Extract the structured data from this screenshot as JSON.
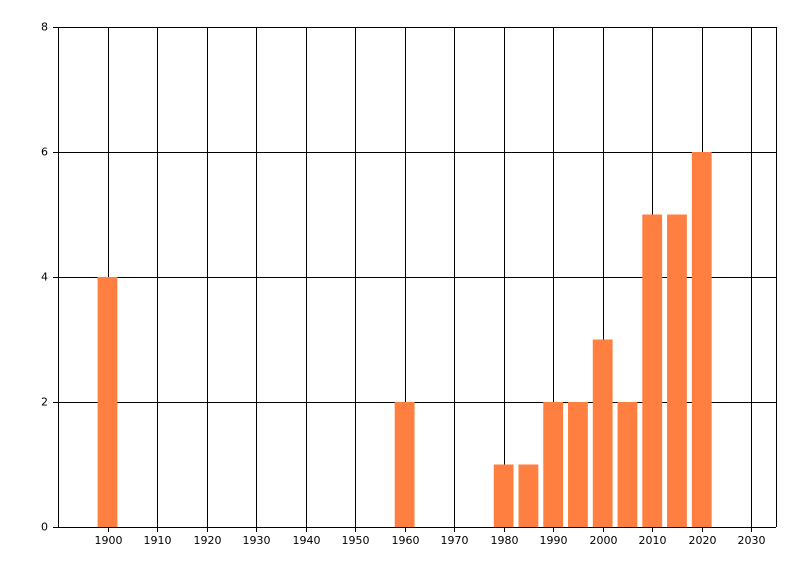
{
  "chart_data": {
    "type": "bar",
    "x": [
      1900,
      1960,
      1980,
      1985,
      1990,
      1995,
      2000,
      2005,
      2010,
      2015,
      2020
    ],
    "values": [
      4,
      2,
      1,
      1,
      2,
      2,
      3,
      2,
      5,
      5,
      6
    ],
    "color": "#ff7f40",
    "xlim": [
      1890,
      2035
    ],
    "xticks": [
      1900,
      1910,
      1920,
      1930,
      1940,
      1950,
      1960,
      1970,
      1980,
      1990,
      2000,
      2010,
      2020,
      2030
    ],
    "ylim": [
      0,
      8
    ],
    "yticks": [
      0,
      2,
      4,
      6,
      8
    ],
    "grid": true
  }
}
